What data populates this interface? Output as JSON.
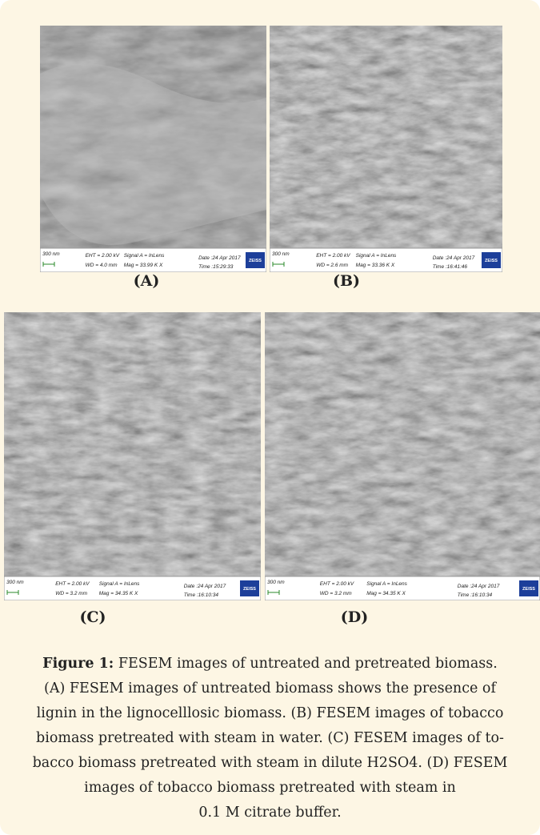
{
  "panels": [
    {
      "label": "(A)",
      "scale": "300 nm",
      "eht": "EHT = 2.00 kV",
      "signal": "Signal A = InLens",
      "date": "Date :24 Apr 2017",
      "wd": "WD = 4.0 mm",
      "mag": "Mag = 33.99 K X",
      "time": "Time :15:29:33",
      "brand": "ZEISS"
    },
    {
      "label": "(B)",
      "scale": "300 nm",
      "eht": "EHT = 2.00 kV",
      "signal": "Signal A = InLens",
      "date": "Date :24 Apr 2017",
      "wd": "WD = 2.6 mm",
      "mag": "Mag = 33.36 K X",
      "time": "Time :16:41:46",
      "brand": "ZEISS"
    },
    {
      "label": "(C)",
      "scale": "300 nm",
      "eht": "EHT = 2.00 kV",
      "signal": "Signal A = InLens",
      "date": "Date :24 Apr 2017",
      "wd": "WD = 3.2 mm",
      "mag": "Mag = 34.35 K X",
      "time": "Time :16:10:34",
      "brand": "ZEISS"
    },
    {
      "label": "(D)",
      "scale": "300 nm",
      "eht": "EHT = 2.00 kV",
      "signal": "Signal A = InLens",
      "date": "Date :24 Apr 2017",
      "wd": "WD = 3.2 mm",
      "mag": "Mag = 34.35 K X",
      "time": "Time :16:10:34",
      "brand": "ZEISS"
    }
  ],
  "caption": {
    "heading": "Figure 1:",
    "lines": [
      "FESEM images of untreated and pretreated biomass.",
      "(A) FESEM images of untreated biomass shows the presence of",
      "lignin in the lignocelllosic biomass. (B) FESEM images of tobacco",
      "biomass pretreated with steam in water. (C) FESEM images of to-",
      "bacco biomass pretreated with steam in dilute H2SO4. (D) FESEM",
      "images of tobacco biomass pretreated with steam in",
      "0.1 M citrate buffer."
    ]
  }
}
